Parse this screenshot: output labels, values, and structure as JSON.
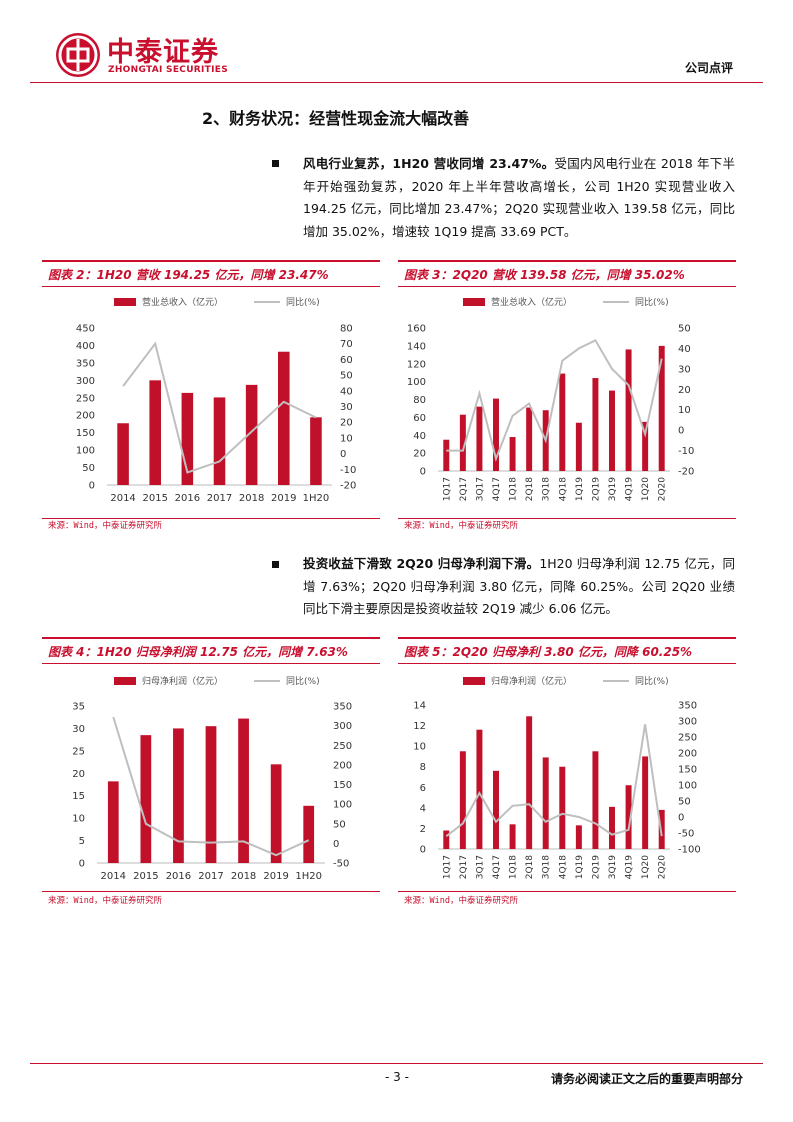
{
  "header": {
    "company_cn": "中泰证券",
    "company_en": "ZHONGTAI SECURITIES",
    "doc_type": "公司点评"
  },
  "section": {
    "title": "2、财务状况：经营性现金流大幅改善"
  },
  "para1": {
    "lead": "风电行业复苏，1H20 营收同增 23.47%。",
    "body": "受国内风电行业在 2018 年下半年开始强劲复苏，2020 年上半年营收高增长，公司 1H20 实现营业收入 194.25 亿元，同比增加 23.47%；2Q20 实现营业收入 139.58 亿元，同比增加 35.02%，增速较 1Q19 提高 33.69 PCT。"
  },
  "para2": {
    "lead": "投资收益下滑致 2Q20 归母净利润下滑。",
    "body": "1H20 归母净利润 12.75 亿元，同增 7.63%；2Q20 归母净利润 3.80 亿元，同降 60.25%。公司 2Q20 业绩同比下滑主要原因是投资收益较 2Q19 减少 6.06 亿元。"
  },
  "figures": {
    "fig2": {
      "title": "图表 2：1H20 营收 194.25 亿元，同增 23.47%",
      "source": "来源：Wind，中泰证券研究所"
    },
    "fig3": {
      "title": "图表 3：2Q20 营收 139.58 亿元，同增 35.02%",
      "source": "来源：Wind，中泰证券研究所"
    },
    "fig4": {
      "title": "图表 4：1H20 归母净利润 12.75 亿元，同增 7.63%",
      "source": "来源：Wind，中泰证券研究所"
    },
    "fig5": {
      "title": "图表 5：2Q20 归母净利 3.80 亿元，同降 60.25%",
      "source": "来源：Wind，中泰证券研究所"
    }
  },
  "chart_data": [
    {
      "id": "fig2",
      "type": "bar+line",
      "categories": [
        "2014",
        "2015",
        "2016",
        "2017",
        "2018",
        "2019",
        "1H20"
      ],
      "series": [
        {
          "name": "营业总收入（亿元）",
          "kind": "bar",
          "axis": "left",
          "color": "#c0102a",
          "values": [
            177,
            300,
            264,
            251,
            287,
            382,
            194
          ]
        },
        {
          "name": "同比(%)",
          "kind": "line",
          "axis": "right",
          "color": "#bfbfbf",
          "values": [
            43,
            70,
            -12,
            -5,
            14,
            33,
            23
          ]
        }
      ],
      "ylim_left": [
        0,
        450
      ],
      "yticks_left": [
        0,
        50,
        100,
        150,
        200,
        250,
        300,
        350,
        400,
        450
      ],
      "ylim_right": [
        -20,
        80
      ],
      "yticks_right": [
        -20,
        -10,
        0,
        10,
        20,
        30,
        40,
        50,
        60,
        70,
        80
      ],
      "legend": "top"
    },
    {
      "id": "fig3",
      "type": "bar+line",
      "categories": [
        "1Q17",
        "2Q17",
        "3Q17",
        "4Q17",
        "1Q18",
        "2Q18",
        "3Q18",
        "4Q18",
        "1Q19",
        "2Q19",
        "3Q19",
        "4Q19",
        "1Q20",
        "2Q20"
      ],
      "series": [
        {
          "name": "营业总收入（亿元）",
          "kind": "bar",
          "axis": "left",
          "color": "#c0102a",
          "values": [
            35,
            63,
            72,
            81,
            38,
            71,
            68,
            109,
            54,
            104,
            90,
            136,
            55,
            140
          ]
        },
        {
          "name": "同比(%)",
          "kind": "line",
          "axis": "right",
          "color": "#bfbfbf",
          "values": [
            -10,
            -10,
            18,
            -14,
            7,
            13,
            -5,
            34,
            40,
            44,
            30,
            22,
            -2,
            35
          ]
        }
      ],
      "ylim_left": [
        0,
        160
      ],
      "yticks_left": [
        0,
        20,
        40,
        60,
        80,
        100,
        120,
        140,
        160
      ],
      "ylim_right": [
        -20,
        50
      ],
      "yticks_right": [
        -20,
        -10,
        0,
        10,
        20,
        30,
        40,
        50
      ],
      "legend": "top"
    },
    {
      "id": "fig4",
      "type": "bar+line",
      "categories": [
        "2014",
        "2015",
        "2016",
        "2017",
        "2018",
        "2019",
        "1H20"
      ],
      "series": [
        {
          "name": "归母净利润（亿元）",
          "kind": "bar",
          "axis": "left",
          "color": "#c0102a",
          "values": [
            18.2,
            28.5,
            30.0,
            30.5,
            32.2,
            22.0,
            12.75
          ]
        },
        {
          "name": "同比(%)",
          "kind": "line",
          "axis": "right",
          "color": "#bfbfbf",
          "values": [
            322,
            50,
            5,
            2,
            5,
            -30,
            8
          ]
        }
      ],
      "ylim_left": [
        0,
        35
      ],
      "yticks_left": [
        0,
        5,
        10,
        15,
        20,
        25,
        30,
        35
      ],
      "ylim_right": [
        -50,
        350
      ],
      "yticks_right": [
        -50,
        0,
        50,
        100,
        150,
        200,
        250,
        300,
        350
      ],
      "legend": "top"
    },
    {
      "id": "fig5",
      "type": "bar+line",
      "categories": [
        "1Q17",
        "2Q17",
        "3Q17",
        "4Q17",
        "1Q18",
        "2Q18",
        "3Q18",
        "4Q18",
        "1Q19",
        "2Q19",
        "3Q19",
        "4Q19",
        "1Q20",
        "2Q20"
      ],
      "series": [
        {
          "name": "归母净利润（亿元）",
          "kind": "bar",
          "axis": "left",
          "color": "#c0102a",
          "values": [
            1.8,
            9.5,
            11.6,
            7.6,
            2.4,
            12.9,
            8.9,
            8.0,
            2.3,
            9.5,
            4.1,
            6.2,
            9.0,
            3.8
          ]
        },
        {
          "name": "同比(%)",
          "kind": "line",
          "axis": "right",
          "color": "#bfbfbf",
          "values": [
            -60,
            -20,
            75,
            -15,
            35,
            40,
            -15,
            10,
            0,
            -20,
            -55,
            -40,
            290,
            -60
          ]
        }
      ],
      "ylim_left": [
        0,
        14
      ],
      "yticks_left": [
        0,
        2,
        4,
        6,
        8,
        10,
        12,
        14
      ],
      "ylim_right": [
        -100,
        350
      ],
      "yticks_right": [
        -100,
        -50,
        0,
        50,
        100,
        150,
        200,
        250,
        300,
        350
      ],
      "legend": "top"
    }
  ],
  "footer": {
    "page": "- 3 -",
    "disclaimer": "请务必阅读正文之后的重要声明部分"
  }
}
